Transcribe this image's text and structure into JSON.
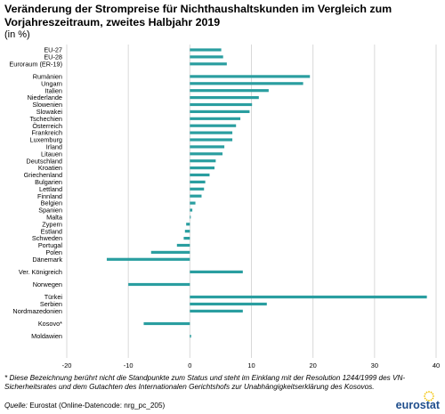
{
  "title": "Veränderung der Strompreise für Nichthaushaltskunden im Vergleich zum Vorjahreszeitraum, zweites Halbjahr 2019",
  "subtitle": "(in %)",
  "footnote": "* Diese Bezeichnung berührt nicht die Standpunkte zum Status und steht im Einklang mit der Resolution 1244/1999 des VN-Sicherheitsrates und dem Gutachten des Internationalen Gerichtshofs zur Unabhängigkeitserklärung des Kosovos.",
  "source": {
    "label": "Quelle:",
    "text": "Eurostat (Online-Datencode: nrg_pc_205)"
  },
  "logo": "eurostat",
  "colors": {
    "bar": "#2a9ea0",
    "grid": "#d9d9d9",
    "logo": "#1f4e8c",
    "stars": "#f2c200"
  },
  "chart_data": {
    "type": "bar",
    "orientation": "horizontal",
    "xlim": [
      -20,
      40
    ],
    "xticks": [
      -20,
      -10,
      0,
      10,
      20,
      30,
      40
    ],
    "grid": true,
    "categories": [
      "EU-27",
      "EU-28",
      "Euroraum (ER-19)",
      "Rumänien",
      "Ungarn",
      "Italien",
      "Niederlande",
      "Slowenien",
      "Slowakei",
      "Tschechien",
      "Österreich",
      "Frankreich",
      "Luxemburg",
      "Irland",
      "Litauen",
      "Deutschland",
      "Kroatien",
      "Griechenland",
      "Bulgarien",
      "Lettland",
      "Finnland",
      "Belgien",
      "Spanien",
      "Malta",
      "Zypern",
      "Estland",
      "Schweden",
      "Portugal",
      "Polen",
      "Dänemark",
      "Ver. Königreich",
      "Norwegen",
      "Türkei",
      "Serbien",
      "Nordmazedonien",
      "Kosovo*",
      "Moldawien"
    ],
    "groups": [
      0,
      0,
      0,
      1,
      1,
      1,
      1,
      1,
      1,
      1,
      1,
      1,
      1,
      1,
      1,
      1,
      1,
      1,
      1,
      1,
      1,
      1,
      1,
      1,
      1,
      1,
      1,
      1,
      1,
      1,
      2,
      3,
      4,
      4,
      4,
      5,
      6
    ],
    "values": [
      5.1,
      5.4,
      6.0,
      19.5,
      18.4,
      12.8,
      11.2,
      10.1,
      9.7,
      8.2,
      7.5,
      6.9,
      6.9,
      5.6,
      5.3,
      4.2,
      4.0,
      3.2,
      2.5,
      2.3,
      1.9,
      0.9,
      0.4,
      0.1,
      -0.6,
      -0.8,
      -1.0,
      -2.1,
      -6.3,
      -13.5,
      8.6,
      -10.0,
      38.5,
      12.5,
      8.6,
      -7.5,
      0.2
    ]
  }
}
